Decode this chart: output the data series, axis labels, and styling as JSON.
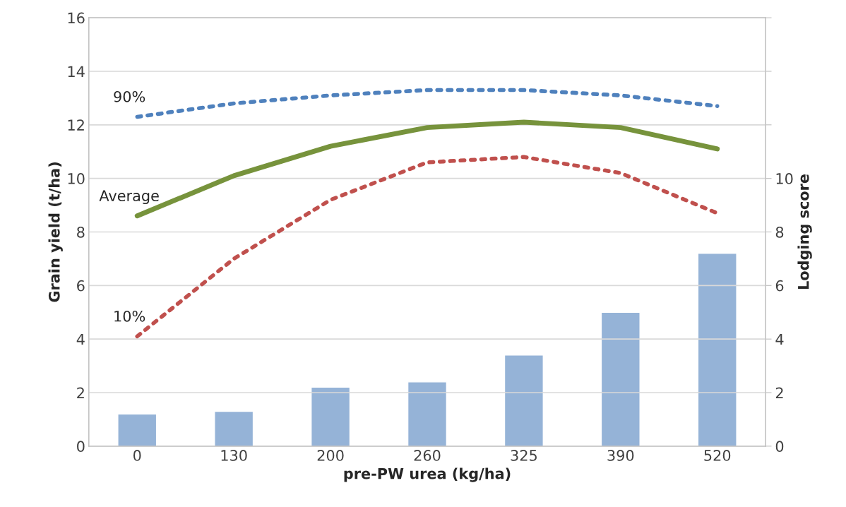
{
  "chart_data": {
    "type": "line",
    "xlabel": "pre-PW urea (kg/ha)",
    "ylabel": "Grain yield (t/ha)",
    "y2label": "Lodging score",
    "categories": [
      "0",
      "130",
      "200",
      "260",
      "325",
      "390",
      "520"
    ],
    "ylim": [
      0,
      16
    ],
    "yticks": [
      0,
      2,
      4,
      6,
      8,
      10,
      12,
      14,
      16
    ],
    "y2lim": [
      0,
      16
    ],
    "y2ticks": [
      0,
      2,
      4,
      6,
      8,
      10,
      {
        "value": 12,
        "label": null
      },
      {
        "value": 14,
        "label": null
      },
      {
        "value": 16,
        "label": null
      }
    ],
    "grid": true,
    "legend": false,
    "series": [
      {
        "type": "bar",
        "axis": "y2",
        "color": "#95b3d7",
        "values": [
          1.2,
          1.3,
          2.2,
          2.4,
          3.4,
          5.0,
          7.2
        ]
      },
      {
        "name": "90%",
        "color": "#4f81bd",
        "line_style": "dotted",
        "values": [
          12.3,
          12.8,
          13.1,
          13.3,
          13.3,
          13.1,
          12.7
        ]
      },
      {
        "name": "Average",
        "color": "#77933c",
        "line_style": "solid",
        "values": [
          8.6,
          10.1,
          11.2,
          11.9,
          12.1,
          11.9,
          11.1
        ]
      },
      {
        "name": "10%",
        "color": "#c0504d",
        "line_style": "dotted",
        "values": [
          4.1,
          7.0,
          9.2,
          10.6,
          10.8,
          10.2,
          8.7
        ]
      }
    ]
  }
}
